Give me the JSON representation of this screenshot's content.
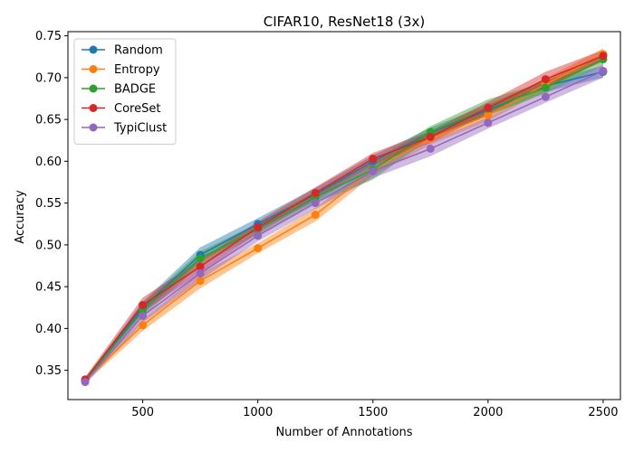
{
  "chart_data": {
    "type": "line",
    "title": "CIFAR10, ResNet18 (3x)",
    "xlabel": "Number of Annotations",
    "ylabel": "Accuracy",
    "xlim": [
      175,
      2575
    ],
    "ylim": [
      0.315,
      0.755
    ],
    "xticks": [
      500,
      1000,
      1500,
      2000,
      2500
    ],
    "yticks": [
      0.35,
      0.4,
      0.45,
      0.5,
      0.55,
      0.6,
      0.65,
      0.7,
      0.75
    ],
    "grid": false,
    "legend_position": "top-left",
    "x": [
      250,
      500,
      750,
      1000,
      1250,
      1500,
      1750,
      2000,
      2250,
      2500
    ],
    "series": [
      {
        "name": "Random",
        "color": "#1f77b4",
        "values": [
          0.338,
          0.425,
          0.488,
          0.525,
          0.56,
          0.6,
          0.634,
          0.661,
          0.69,
          0.707
        ],
        "lower": [
          0.336,
          0.418,
          0.48,
          0.518,
          0.552,
          0.593,
          0.628,
          0.654,
          0.683,
          0.7
        ],
        "upper": [
          0.34,
          0.432,
          0.497,
          0.532,
          0.568,
          0.607,
          0.64,
          0.668,
          0.697,
          0.714
        ]
      },
      {
        "name": "Entropy",
        "color": "#ff7f0e",
        "values": [
          0.338,
          0.404,
          0.457,
          0.496,
          0.536,
          0.59,
          0.627,
          0.655,
          0.692,
          0.728
        ],
        "lower": [
          0.335,
          0.397,
          0.448,
          0.49,
          0.528,
          0.583,
          0.62,
          0.648,
          0.685,
          0.721
        ],
        "upper": [
          0.341,
          0.411,
          0.466,
          0.502,
          0.544,
          0.597,
          0.634,
          0.662,
          0.699,
          0.735
        ]
      },
      {
        "name": "BADGE",
        "color": "#2ca02c",
        "values": [
          0.338,
          0.422,
          0.484,
          0.519,
          0.557,
          0.59,
          0.635,
          0.663,
          0.688,
          0.722
        ],
        "lower": [
          0.335,
          0.414,
          0.476,
          0.512,
          0.55,
          0.578,
          0.628,
          0.655,
          0.681,
          0.715
        ],
        "upper": [
          0.341,
          0.43,
          0.492,
          0.526,
          0.564,
          0.6,
          0.642,
          0.674,
          0.695,
          0.729
        ]
      },
      {
        "name": "CoreSet",
        "color": "#d62728",
        "values": [
          0.339,
          0.428,
          0.474,
          0.521,
          0.562,
          0.603,
          0.629,
          0.664,
          0.698,
          0.726
        ],
        "lower": [
          0.336,
          0.42,
          0.466,
          0.514,
          0.555,
          0.596,
          0.622,
          0.657,
          0.69,
          0.719
        ],
        "upper": [
          0.342,
          0.437,
          0.482,
          0.528,
          0.569,
          0.61,
          0.636,
          0.671,
          0.707,
          0.733
        ]
      },
      {
        "name": "TypiClust",
        "color": "#9467bd",
        "values": [
          0.336,
          0.415,
          0.466,
          0.511,
          0.55,
          0.588,
          0.615,
          0.646,
          0.677,
          0.708
        ],
        "lower": [
          0.333,
          0.407,
          0.458,
          0.504,
          0.543,
          0.58,
          0.606,
          0.639,
          0.67,
          0.7
        ],
        "upper": [
          0.339,
          0.423,
          0.474,
          0.518,
          0.557,
          0.596,
          0.624,
          0.653,
          0.684,
          0.716
        ]
      }
    ]
  }
}
